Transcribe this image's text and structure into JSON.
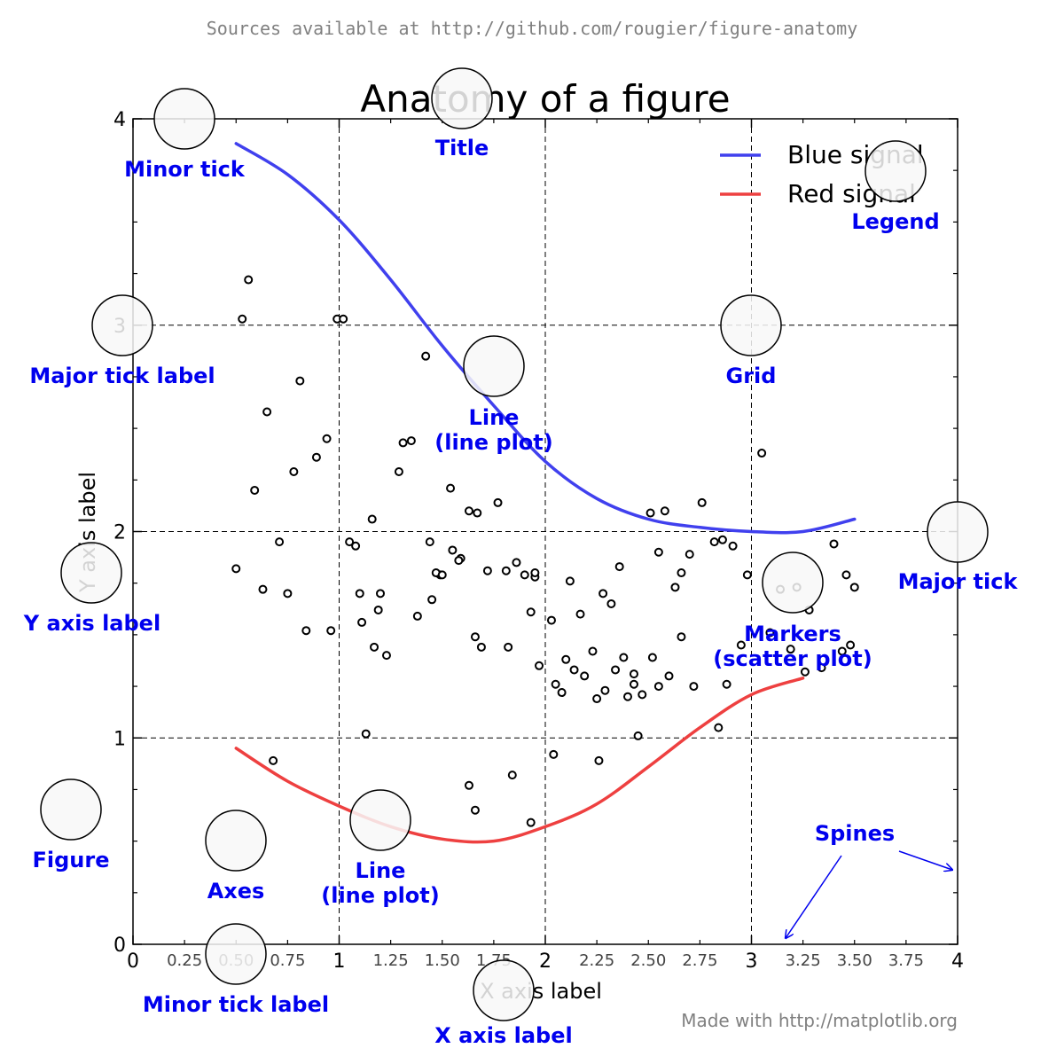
{
  "header": {
    "source_note": "Sources available at http://github.com/rougier/figure-anatomy"
  },
  "footer": {
    "made_with": "Made with http://matplotlib.org"
  },
  "colors": {
    "blue": "#4040ee",
    "red": "#ee4040",
    "annotation": "#0000ee",
    "note": "#808080",
    "circle_fill": "#f8f8f8"
  },
  "chart_data": {
    "type": "line",
    "title": "Anatomy of a figure",
    "xlabel": "X axis label",
    "ylabel": "Y axis label",
    "xlim": [
      0,
      4
    ],
    "ylim": [
      0,
      4
    ],
    "grid": true,
    "legend_position": "top-right",
    "major_xticks": [
      {
        "value": 0,
        "label": "0"
      },
      {
        "value": 1,
        "label": "1"
      },
      {
        "value": 2,
        "label": "2"
      },
      {
        "value": 3,
        "label": "3"
      },
      {
        "value": 4,
        "label": "4"
      }
    ],
    "minor_xticks": [
      {
        "value": 0.25,
        "label": "0.25"
      },
      {
        "value": 0.5,
        "label": "0.50"
      },
      {
        "value": 0.75,
        "label": "0.75"
      },
      {
        "value": 1.25,
        "label": "1.25"
      },
      {
        "value": 1.5,
        "label": "1.50"
      },
      {
        "value": 1.75,
        "label": "1.75"
      },
      {
        "value": 2.25,
        "label": "2.25"
      },
      {
        "value": 2.5,
        "label": "2.50"
      },
      {
        "value": 2.75,
        "label": "2.75"
      },
      {
        "value": 3.25,
        "label": "3.25"
      },
      {
        "value": 3.5,
        "label": "3.50"
      },
      {
        "value": 3.75,
        "label": "3.75"
      }
    ],
    "major_yticks": [
      {
        "value": 0,
        "label": "0"
      },
      {
        "value": 1,
        "label": "1"
      },
      {
        "value": 2,
        "label": "2"
      },
      {
        "value": 3,
        "label": "3"
      },
      {
        "value": 4,
        "label": "4"
      }
    ],
    "minor_ytick_values": [
      0.25,
      0.5,
      0.75,
      1.25,
      1.5,
      1.75,
      2.25,
      2.5,
      2.75,
      3.25,
      3.5,
      3.75
    ],
    "series": [
      {
        "name": "Blue signal",
        "color": "#4040ee",
        "x": [
          0.5,
          0.75,
          1.0,
          1.25,
          1.5,
          1.75,
          2.0,
          2.25,
          2.5,
          2.75,
          3.0,
          3.25,
          3.5
        ],
        "y": [
          3.88,
          3.73,
          3.51,
          3.22,
          2.9,
          2.61,
          2.34,
          2.16,
          2.06,
          2.02,
          2.0,
          2.0,
          2.06
        ]
      },
      {
        "name": "Red signal",
        "color": "#ee4040",
        "x": [
          0.5,
          0.75,
          1.0,
          1.25,
          1.5,
          1.75,
          2.0,
          2.25,
          2.5,
          2.75,
          3.0,
          3.25
        ],
        "y": [
          0.95,
          0.79,
          0.67,
          0.57,
          0.51,
          0.5,
          0.57,
          0.68,
          0.86,
          1.05,
          1.21,
          1.29
        ]
      }
    ],
    "scatter": {
      "name": "Markers",
      "x": [
        0.53,
        0.56,
        0.59,
        0.65,
        0.78,
        0.81,
        0.89,
        0.94,
        0.99,
        1.02,
        1.11,
        1.16,
        1.19,
        1.29,
        1.31,
        1.35,
        1.42,
        1.44,
        1.49,
        1.54,
        1.59,
        1.63,
        1.67,
        1.77,
        1.81,
        1.86,
        1.93,
        1.95,
        2.03,
        2.08,
        2.12,
        2.17,
        2.23,
        2.28,
        2.32,
        2.36,
        2.4,
        2.43,
        2.47,
        2.51,
        2.55,
        2.58,
        2.63,
        2.66,
        2.7,
        2.76,
        2.82,
        2.86,
        2.91,
        2.98,
        3.05,
        3.14,
        3.22,
        3.28,
        3.4,
        3.46,
        3.5,
        0.5,
        0.63,
        0.71,
        0.75,
        0.84,
        0.96,
        1.05,
        1.08,
        1.1,
        1.17,
        1.2,
        1.23,
        1.38,
        1.45,
        1.47,
        1.5,
        1.55,
        1.58,
        1.66,
        1.69,
        1.72,
        1.82,
        1.9,
        1.95,
        1.97,
        2.05,
        2.1,
        2.14,
        2.19,
        2.25,
        2.29,
        2.34,
        2.38,
        2.43,
        2.52,
        2.55,
        2.6,
        2.66,
        2.72,
        2.84,
        2.88,
        2.95,
        3.09,
        3.19,
        3.26,
        3.34,
        3.44,
        3.48,
        0.68,
        1.13,
        1.63,
        1.66,
        1.84,
        1.93,
        2.04,
        2.26,
        2.45
      ],
      "y": [
        3.03,
        3.22,
        2.2,
        2.58,
        2.29,
        2.73,
        2.36,
        2.45,
        3.03,
        3.03,
        1.56,
        2.06,
        1.62,
        2.29,
        2.43,
        2.44,
        2.85,
        1.95,
        1.79,
        2.21,
        1.87,
        2.1,
        2.09,
        2.14,
        1.81,
        1.85,
        1.61,
        1.78,
        1.57,
        1.22,
        1.76,
        1.6,
        1.42,
        1.7,
        1.65,
        1.83,
        1.2,
        1.31,
        1.21,
        2.09,
        1.9,
        2.1,
        1.73,
        1.8,
        1.89,
        2.14,
        1.95,
        1.96,
        1.93,
        1.79,
        2.38,
        1.72,
        1.73,
        1.62,
        1.94,
        1.79,
        1.73,
        1.82,
        1.72,
        1.95,
        1.7,
        1.52,
        1.52,
        1.95,
        1.93,
        1.7,
        1.44,
        1.7,
        1.4,
        1.59,
        1.67,
        1.8,
        1.79,
        1.91,
        1.86,
        1.49,
        1.44,
        1.81,
        1.44,
        1.79,
        1.8,
        1.35,
        1.26,
        1.38,
        1.33,
        1.3,
        1.19,
        1.23,
        1.33,
        1.39,
        1.26,
        1.39,
        1.25,
        1.3,
        1.49,
        1.25,
        1.05,
        1.26,
        1.45,
        1.51,
        1.43,
        1.32,
        1.34,
        1.42,
        1.45,
        0.89,
        1.02,
        0.77,
        0.65,
        0.82,
        0.59,
        0.92,
        0.89,
        1.01
      ]
    },
    "annotations": [
      {
        "name": "minor-tick",
        "label": "Minor tick"
      },
      {
        "name": "title",
        "label": "Title"
      },
      {
        "name": "legend",
        "label": "Legend"
      },
      {
        "name": "major-tick-label",
        "label": "Major tick label"
      },
      {
        "name": "grid",
        "label": "Grid"
      },
      {
        "name": "line-plot-upper",
        "label": "Line\n(line plot)"
      },
      {
        "name": "major-tick",
        "label": "Major tick"
      },
      {
        "name": "y-axis-label",
        "label": "Y axis label"
      },
      {
        "name": "markers",
        "label": "Markers\n(scatter plot)"
      },
      {
        "name": "figure",
        "label": "Figure"
      },
      {
        "name": "axes",
        "label": "Axes"
      },
      {
        "name": "line-plot-lower",
        "label": "Line\n(line plot)"
      },
      {
        "name": "spines",
        "label": "Spines"
      },
      {
        "name": "minor-tick-label",
        "label": "Minor tick label"
      },
      {
        "name": "x-axis-label",
        "label": "X axis label"
      }
    ]
  }
}
